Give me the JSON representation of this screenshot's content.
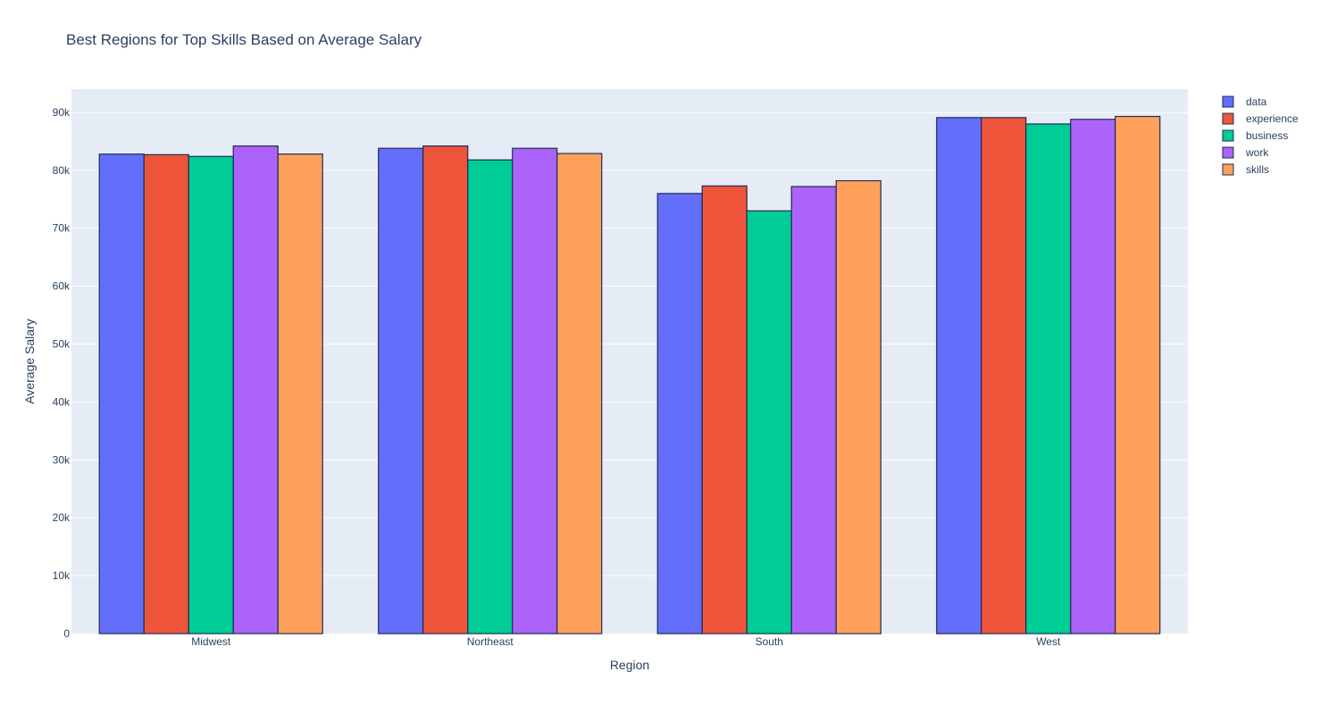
{
  "chart_data": {
    "type": "bar",
    "title": "Best Regions for Top Skills Based on Average Salary",
    "xlabel": "Region",
    "ylabel": "Average Salary",
    "categories": [
      "Midwest",
      "Northeast",
      "South",
      "West"
    ],
    "ylim": [
      0,
      94000
    ],
    "yticks": [
      0,
      10000,
      20000,
      30000,
      40000,
      50000,
      60000,
      70000,
      80000,
      90000
    ],
    "ytick_labels": [
      "0",
      "10k",
      "20k",
      "30k",
      "40k",
      "50k",
      "60k",
      "70k",
      "80k",
      "90k"
    ],
    "grid": true,
    "legend_position": "top-right",
    "series": [
      {
        "name": "data",
        "color": "#636efa",
        "values": [
          82800,
          83800,
          76000,
          89100
        ]
      },
      {
        "name": "experience",
        "color": "#ef553b",
        "values": [
          82700,
          84200,
          77300,
          89100
        ]
      },
      {
        "name": "business",
        "color": "#00cc96",
        "values": [
          82400,
          81800,
          73000,
          88000
        ]
      },
      {
        "name": "work",
        "color": "#ab63fa",
        "values": [
          84200,
          83800,
          77200,
          88800
        ]
      },
      {
        "name": "skills",
        "color": "#ffa15a",
        "values": [
          82800,
          82900,
          78200,
          89300
        ]
      }
    ],
    "colors": {
      "plot_bg": "#e5ecf6",
      "grid": "#ffffff",
      "bar_outline": "#1f2d52",
      "text": "#2a3f5f"
    }
  }
}
